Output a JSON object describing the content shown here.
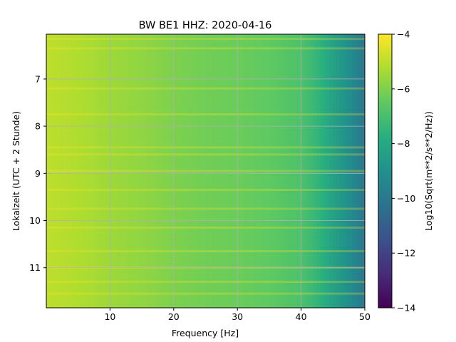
{
  "chart_data": {
    "type": "heatmap",
    "title": "BW BE1  HHZ: 2020-04-16",
    "xlabel": "Frequency [Hz]",
    "ylabel": "Lokalzeit (UTC + 2 Stunde)",
    "xlim": [
      0,
      50
    ],
    "ylim": [
      6.05,
      11.85
    ],
    "y_inverted": true,
    "x_ticks": [
      "10",
      "20",
      "30",
      "40",
      "50"
    ],
    "y_ticks": [
      "7",
      "8",
      "9",
      "10",
      "11"
    ],
    "grid": true,
    "colormap": "viridis",
    "colorbar": {
      "label": "Log10(Sqrt(m**2/s**2/Hz))",
      "range": [
        -14,
        -4
      ],
      "ticks": [
        "−4",
        "−6",
        "−8",
        "−10",
        "−12",
        "−14"
      ]
    },
    "values_description_grid": {
      "frequency_hz": [
        0,
        5,
        10,
        15,
        20,
        25,
        30,
        35,
        40,
        42,
        44,
        46,
        48,
        50
      ],
      "log10_amplitude": [
        -5.0,
        -5.2,
        -5.5,
        -5.7,
        -6.0,
        -6.2,
        -6.3,
        -6.5,
        -6.9,
        -7.3,
        -7.9,
        -8.6,
        -9.3,
        -10.0
      ]
    },
    "bright_time_bands_hours": [
      6.15,
      6.35,
      7.2,
      7.75,
      8.45,
      8.6,
      8.95,
      9.35,
      9.75,
      10.15,
      10.65,
      11.0,
      11.3,
      11.55
    ]
  },
  "colors": {
    "viridis": [
      "#440154",
      "#472c7a",
      "#3b528b",
      "#2c728e",
      "#21918c",
      "#28ae80",
      "#5ec962",
      "#addc30",
      "#fde725"
    ],
    "grid": "#b0b0b0"
  }
}
